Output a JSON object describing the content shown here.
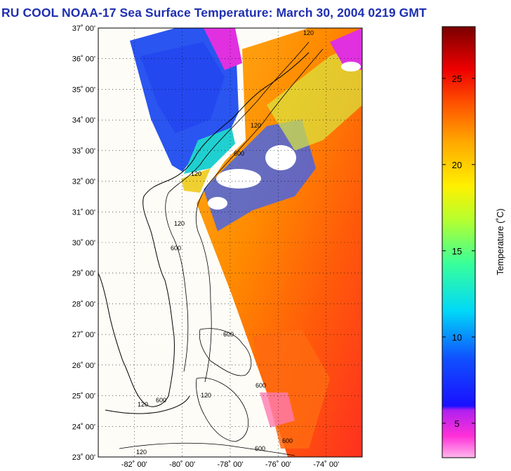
{
  "title": "RU COOL  NOAA-17  Sea Surface Temperature:  March 30, 2004 0219 GMT",
  "map": {
    "lat_range": [
      23,
      37
    ],
    "lon_range": [
      -83.5,
      -72.5
    ],
    "lat_ticks": [
      "23˚ 00'",
      "24˚ 00'",
      "25˚ 00'",
      "26˚ 00'",
      "27˚ 00'",
      "28˚ 00'",
      "29˚ 00'",
      "30˚ 00'",
      "31˚ 00'",
      "32˚ 00'",
      "33˚ 00'",
      "34˚ 00'",
      "35˚ 00'",
      "36˚ 00'",
      "37˚ 00'"
    ],
    "lon_ticks": [
      "-82˚ 00'",
      "-80˚ 00'",
      "-78˚ 00'",
      "-76˚ 00'",
      "-74˚ 00'"
    ],
    "contour_labels": [
      "120",
      "120",
      "600",
      "120",
      "600",
      "600",
      "120",
      "600",
      "120",
      "600",
      "120",
      "600",
      "600",
      "120"
    ]
  },
  "colorbar": {
    "label": "Temperature (˚C)",
    "ticks": [
      "5",
      "10",
      "15",
      "20",
      "25"
    ],
    "range": [
      3,
      28
    ]
  },
  "colors": {
    "title": "#1f2fb0",
    "land": "#fefcf6"
  }
}
